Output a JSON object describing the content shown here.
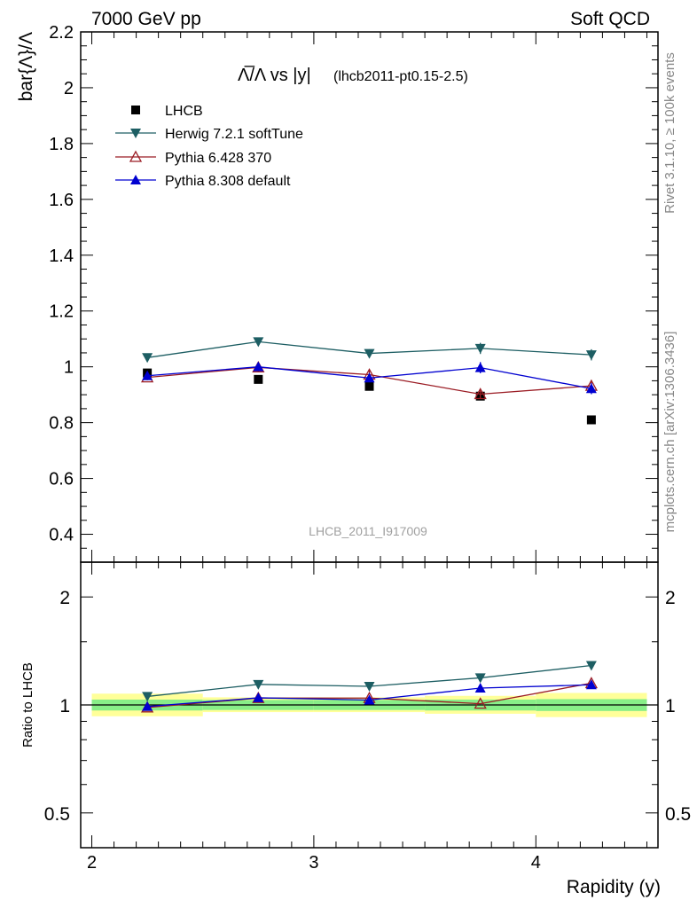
{
  "header": {
    "left": "7000 GeV pp",
    "right": "Soft QCD"
  },
  "side_labels": {
    "rivet": "Rivet 3.1.10, ≥ 100k events",
    "mcplots": "mcplots.cern.ch [arXiv:1306.3436]"
  },
  "chart_data": [
    {
      "type": "scatter",
      "title_prefix": "Λ̅/Λ vs |y|",
      "title_suffix": "(lhcb2011-pt0.15-2.5)",
      "ylabel": "bar{Λ}/Λ",
      "xlabel": "",
      "watermark": "LHCB_2011_I917009",
      "xlim": [
        1.95,
        4.55
      ],
      "ylim": [
        0.3,
        2.2
      ],
      "xticks": [
        2,
        3,
        4
      ],
      "yticks": [
        0.4,
        0.6,
        0.8,
        1,
        1.2,
        1.4,
        1.6,
        1.8,
        2,
        2.2
      ],
      "ytick_labels": [
        "0.4",
        "0.6",
        "0.8",
        "1",
        "1.2",
        "1.4",
        "1.6",
        "1.8",
        "2",
        "2.2"
      ],
      "legend_position": "top-left",
      "x": [
        2.25,
        2.75,
        3.25,
        3.75,
        4.25
      ],
      "series": [
        {
          "name": "LHCB",
          "marker": "square",
          "color": "#000000",
          "line": false,
          "values": [
            0.978,
            0.955,
            0.93,
            0.895,
            0.81
          ],
          "errors": [
            0,
            0,
            0,
            0,
            0
          ]
        },
        {
          "name": "Herwig 7.2.1 softTune",
          "marker": "triangle-down",
          "color": "#1d5e63",
          "line": true,
          "values": [
            1.033,
            1.09,
            1.048,
            1.066,
            1.043
          ],
          "errors": [
            0.01,
            0.015,
            0.015,
            0.02,
            0.02
          ]
        },
        {
          "name": "Pythia 6.428 370",
          "marker": "triangle-up-open",
          "color": "#9b1c24",
          "line": true,
          "values": [
            0.962,
            0.998,
            0.972,
            0.902,
            0.932
          ],
          "errors": [
            0.01,
            0.015,
            0.015,
            0.015,
            0.02
          ]
        },
        {
          "name": "Pythia 8.308 default",
          "marker": "triangle-up",
          "color": "#0000d0",
          "line": true,
          "values": [
            0.968,
            1.0,
            0.96,
            0.997,
            0.922
          ],
          "errors": [
            0.01,
            0.015,
            0.015,
            0.02,
            0.02
          ]
        }
      ]
    },
    {
      "type": "line",
      "ylabel": "Ratio to LHCB",
      "xlabel": "Rapidity (y)",
      "log_y": true,
      "xlim": [
        1.95,
        4.55
      ],
      "ylim": [
        0.4,
        2.5
      ],
      "xticks": [
        2,
        3,
        4
      ],
      "xtick_labels": [
        "2",
        "3",
        "4"
      ],
      "yticks": [
        0.5,
        1,
        2
      ],
      "ytick_labels": [
        "0.5",
        "1",
        "2"
      ],
      "x": [
        2.25,
        2.75,
        3.25,
        3.75,
        4.25
      ],
      "bands": {
        "bins": [
          [
            2.0,
            2.5
          ],
          [
            2.5,
            3.0
          ],
          [
            3.0,
            3.5
          ],
          [
            3.5,
            4.0
          ],
          [
            4.0,
            4.5
          ]
        ],
        "stat_color": "#88ee88",
        "total_color": "#ffff99",
        "stat": [
          [
            0.965,
            1.035
          ],
          [
            0.968,
            1.032
          ],
          [
            0.968,
            1.032
          ],
          [
            0.965,
            1.035
          ],
          [
            0.962,
            1.038
          ]
        ],
        "total": [
          [
            0.93,
            1.075
          ],
          [
            0.955,
            1.05
          ],
          [
            0.955,
            1.05
          ],
          [
            0.945,
            1.06
          ],
          [
            0.925,
            1.08
          ]
        ]
      },
      "series": [
        {
          "name": "Herwig 7.2.1 softTune",
          "marker": "triangle-down",
          "color": "#1d5e63",
          "values": [
            1.056,
            1.141,
            1.127,
            1.19,
            1.288
          ]
        },
        {
          "name": "Pythia 6.428 370",
          "marker": "triangle-up-open",
          "color": "#9b1c24",
          "values": [
            0.984,
            1.045,
            1.045,
            1.008,
            1.15
          ]
        },
        {
          "name": "Pythia 8.308 default",
          "marker": "triangle-up",
          "color": "#0000d0",
          "values": [
            0.99,
            1.047,
            1.032,
            1.114,
            1.138
          ]
        }
      ]
    }
  ]
}
